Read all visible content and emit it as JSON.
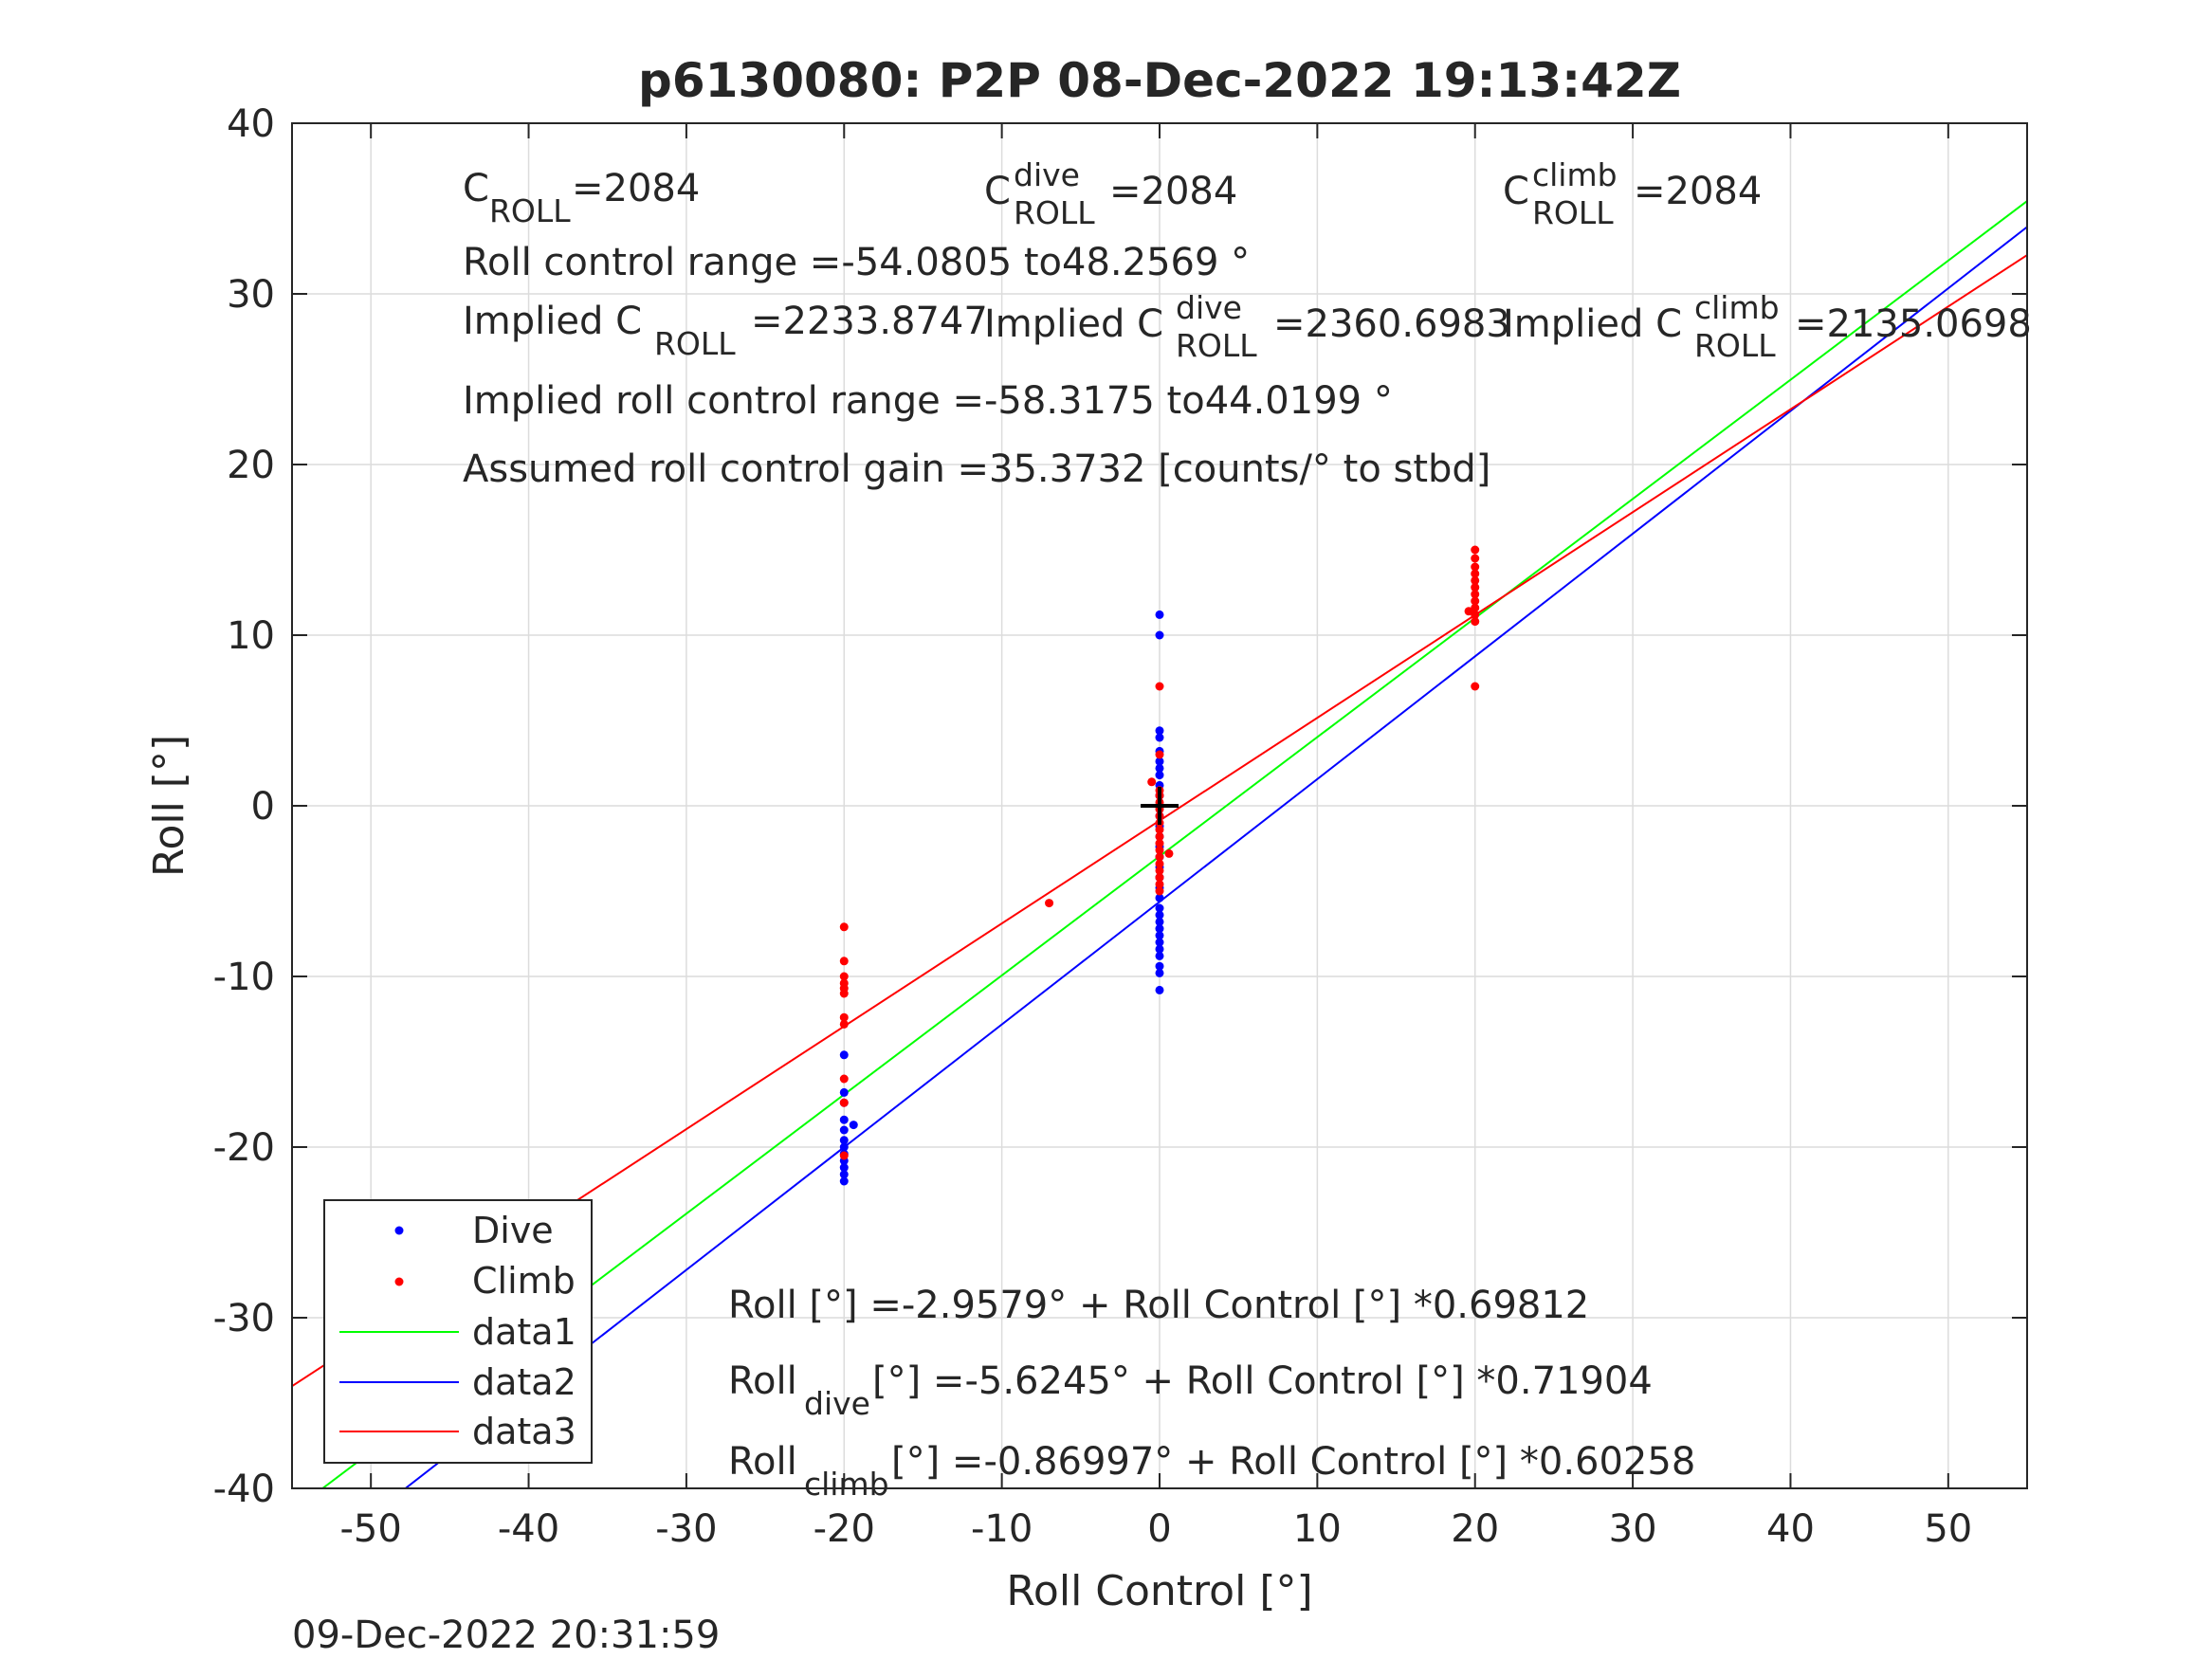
{
  "figure": {
    "title": "p6130080: P2P 08-Dec-2022 19:13:42Z",
    "timestamp": "09-Dec-2022 20:31:59"
  },
  "annotations": {
    "c_roll": "=2084",
    "c_roll_dive": "=2084",
    "c_roll_climb": "=2084",
    "roll_control_range": "Roll control range =-54.0805 to48.2569 °",
    "implied_c_roll": "=2233.8747",
    "implied_c_roll_dive": "=2360.6983",
    "implied_c_roll_climb": "=2135.0698",
    "implied_range": "Implied roll control range =-58.3175 to44.0199 °",
    "gain": "Assumed roll control gain =35.3732 [counts/° to stbd]",
    "fit_all": "Roll [°] =-2.9579° + Roll Control [°] *0.69812",
    "fit_dive": " [°] =-5.6245° + Roll Control [°] *0.71904",
    "fit_climb": " [°] =-0.86997° + Roll Control [°] *0.60258"
  },
  "chart_data": {
    "type": "scatter",
    "title": "p6130080: P2P 08-Dec-2022 19:13:42Z",
    "xlabel": "Roll Control [°]",
    "ylabel": "Roll [°]",
    "xlim": [
      -55,
      55
    ],
    "ylim": [
      -40,
      40
    ],
    "xticks": [
      -50,
      -40,
      -30,
      -20,
      -10,
      0,
      10,
      20,
      30,
      40,
      50
    ],
    "yticks": [
      -40,
      -30,
      -20,
      -10,
      0,
      10,
      20,
      30,
      40
    ],
    "grid": true,
    "legend_position": "bottom-left",
    "colors": {
      "dive": "#0000ff",
      "climb": "#ff0000",
      "data1": "#00ff00",
      "data2": "#0000ff",
      "data3": "#ff0000"
    },
    "series": [
      {
        "name": "Dive",
        "kind": "points",
        "color": "#0000ff",
        "points": [
          [
            0,
            11.2
          ],
          [
            0,
            10.0
          ],
          [
            0,
            4.4
          ],
          [
            0,
            4.0
          ],
          [
            0,
            3.2
          ],
          [
            0,
            2.6
          ],
          [
            0,
            2.2
          ],
          [
            0,
            1.8
          ],
          [
            0,
            1.2
          ],
          [
            0,
            0.6
          ],
          [
            0,
            0
          ],
          [
            0,
            -0.6
          ],
          [
            0,
            -1.2
          ],
          [
            0,
            -1.8
          ],
          [
            0,
            -2.4
          ],
          [
            0,
            -3.0
          ],
          [
            0,
            -3.6
          ],
          [
            0,
            -4.2
          ],
          [
            0,
            -4.8
          ],
          [
            0,
            -5.4
          ],
          [
            0,
            -6.0
          ],
          [
            0,
            -6.4
          ],
          [
            0,
            -6.8
          ],
          [
            0,
            -7.2
          ],
          [
            0,
            -7.6
          ],
          [
            0,
            -8.0
          ],
          [
            0,
            -8.4
          ],
          [
            0,
            -8.8
          ],
          [
            0,
            -9.4
          ],
          [
            0,
            -9.8
          ],
          [
            0,
            -10.8
          ],
          [
            -20,
            -14.6
          ],
          [
            -20,
            -16.8
          ],
          [
            -20,
            -17.4
          ],
          [
            -20,
            -18.4
          ],
          [
            -20,
            -19.0
          ],
          [
            -20,
            -19.6
          ],
          [
            -20,
            -20.0
          ],
          [
            -20,
            -20.4
          ],
          [
            -20,
            -20.8
          ],
          [
            -20,
            -21.2
          ],
          [
            -20,
            -21.6
          ],
          [
            -20,
            -22.0
          ],
          [
            -19.4,
            -18.7
          ]
        ]
      },
      {
        "name": "Climb",
        "kind": "points",
        "color": "#ff0000",
        "points": [
          [
            0,
            7.0
          ],
          [
            0,
            3.0
          ],
          [
            -0.5,
            1.4
          ],
          [
            0,
            0.9
          ],
          [
            0,
            0.6
          ],
          [
            0,
            0.2
          ],
          [
            0,
            -0.2
          ],
          [
            0,
            -0.6
          ],
          [
            0,
            -1.0
          ],
          [
            0,
            -1.4
          ],
          [
            0,
            -1.8
          ],
          [
            0,
            -2.2
          ],
          [
            0,
            -2.6
          ],
          [
            0,
            -3.0
          ],
          [
            0,
            -3.4
          ],
          [
            0,
            -3.8
          ],
          [
            0,
            -4.2
          ],
          [
            0,
            -4.6
          ],
          [
            0,
            -5.0
          ],
          [
            0.6,
            -2.8
          ],
          [
            -7,
            -5.7
          ],
          [
            -20,
            -7.1
          ],
          [
            -20,
            -9.1
          ],
          [
            -20,
            -10.0
          ],
          [
            -20,
            -10.4
          ],
          [
            -20,
            -10.7
          ],
          [
            -20,
            -11.0
          ],
          [
            -20,
            -12.4
          ],
          [
            -20,
            -12.8
          ],
          [
            -20,
            -16.0
          ],
          [
            -20,
            -17.4
          ],
          [
            -20,
            -20.5
          ],
          [
            20,
            15.0
          ],
          [
            20,
            14.5
          ],
          [
            20,
            14.0
          ],
          [
            20,
            13.6
          ],
          [
            20,
            13.2
          ],
          [
            20,
            12.8
          ],
          [
            20,
            12.4
          ],
          [
            20,
            12.0
          ],
          [
            20,
            11.6
          ],
          [
            20,
            11.2
          ],
          [
            20,
            10.8
          ],
          [
            19.6,
            11.4
          ],
          [
            20,
            7.0
          ]
        ]
      },
      {
        "name": "data1",
        "kind": "line",
        "color": "#00ff00",
        "intercept": -2.9579,
        "slope": 0.69812
      },
      {
        "name": "data2",
        "kind": "line",
        "color": "#0000ff",
        "intercept": -5.6245,
        "slope": 0.71904
      },
      {
        "name": "data3",
        "kind": "line",
        "color": "#ff0000",
        "intercept": -0.86997,
        "slope": 0.60258
      }
    ],
    "marker": {
      "x": 0,
      "y": 0,
      "symbol": "+",
      "color": "#000000"
    }
  }
}
